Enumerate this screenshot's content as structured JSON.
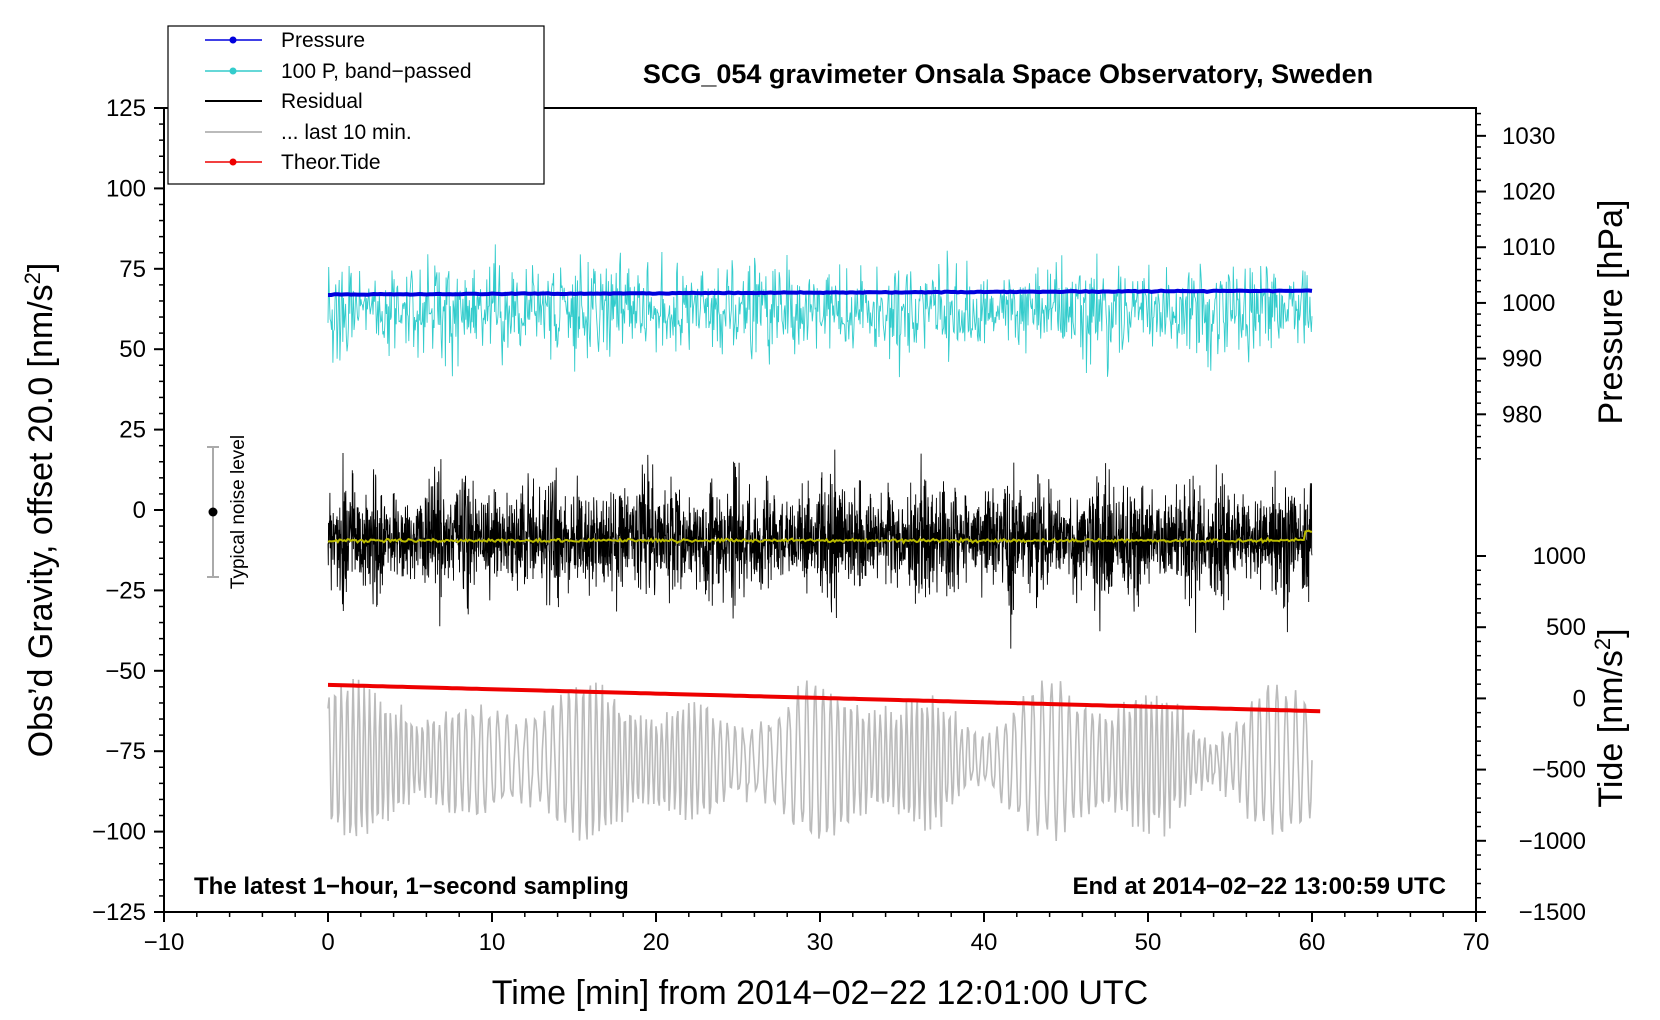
{
  "chart_data": {
    "type": "line",
    "title": "SCG_054 gravimeter Onsala Space Observatory, Sweden",
    "xlabel": "Time [min] from 2014−02−22 12:01:00 UTC",
    "ylabel_left": "Obs’d Gravity, offset 20.0 [nm/s",
    "ylabel_left_sup": "2",
    "ylabel_left_end": "]",
    "ylabel_pressure": "Pressure [hPa]",
    "ylabel_tide": "Tide [nm/s",
    "ylabel_tide_sup": "2",
    "ylabel_tide_end": "]",
    "xlim": [
      -10,
      70
    ],
    "ylim_left": [
      -125,
      125
    ],
    "x_ticks": [
      -10,
      0,
      10,
      20,
      30,
      40,
      50,
      60,
      70
    ],
    "x_tick_labels": [
      "−10",
      "0",
      "10",
      "20",
      "30",
      "40",
      "50",
      "60",
      "70"
    ],
    "y_left_ticks": [
      125,
      100,
      75,
      50,
      25,
      0,
      -25,
      -50,
      -75,
      -100,
      -125
    ],
    "y_left_tick_labels": [
      "125",
      "100",
      "75",
      "50",
      "25",
      "0",
      "−25",
      "−50",
      "−75",
      "−100",
      "−125"
    ],
    "pressure_axis": {
      "range": [
        970,
        1035
      ],
      "ticks": [
        1030,
        1020,
        1010,
        1000,
        990,
        980
      ],
      "tick_labels": [
        "1030",
        "1020",
        "1010",
        "1000",
        "990",
        "980"
      ]
    },
    "tide_axis": {
      "range": [
        -1500,
        1000
      ],
      "ticks": [
        1000,
        500,
        0,
        -500,
        -1000,
        -1500
      ],
      "tick_labels": [
        "1000",
        "500",
        "0",
        "−500",
        "−1000",
        "−1500"
      ]
    },
    "series": [
      {
        "name": "Pressure",
        "color": "#0000dd",
        "axis": "pressure",
        "start_hpa": 1001.5,
        "end_hpa": 1002.2,
        "style": "line+markers"
      },
      {
        "name": "100 P, band−passed",
        "color": "#33cccc",
        "axis": "gravity",
        "center": 62,
        "amplitude": 15,
        "style": "line+markers"
      },
      {
        "name": "Residual",
        "color": "#000000",
        "axis": "gravity",
        "center": -9,
        "amplitude": 25,
        "style": "line"
      },
      {
        "name": "... last 10 min.",
        "color": "#bbbbbb",
        "axis": "gravity",
        "center": -78,
        "amplitude": 20,
        "style": "line"
      },
      {
        "name": "Theor.Tide",
        "color": "#ee0000",
        "axis": "tide",
        "start_value": 95,
        "end_value": -90,
        "style": "line+markers"
      }
    ],
    "smoothed_residual": {
      "color": "#bbbb00",
      "value": -9.5
    },
    "noise_marker": {
      "label": "Typical noise level",
      "x": -7,
      "y": 0,
      "low": -20,
      "high": 20
    },
    "annotations": {
      "left": "The latest 1−hour, 1−second sampling",
      "right": "End at 2014−02−22 13:00:59 UTC"
    }
  }
}
